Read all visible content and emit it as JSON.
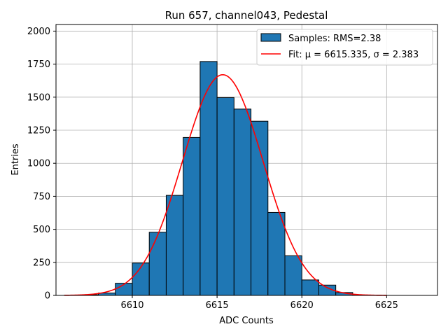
{
  "chart_data": {
    "type": "bar",
    "title": "Run 657, channel043, Pedestal",
    "xlabel": "ADC Counts",
    "ylabel": "Entries",
    "xlim": [
      6605.5,
      6628
    ],
    "ylim": [
      0,
      2050
    ],
    "x_ticks": [
      6610,
      6615,
      6620,
      6625
    ],
    "y_ticks": [
      0,
      250,
      500,
      750,
      1000,
      1250,
      1500,
      1750,
      2000
    ],
    "grid": true,
    "legend_position": "top-right",
    "bin_width": 1,
    "series": [
      {
        "name": "Samples: RMS=2.38",
        "kind": "histogram",
        "color": "#1f77b4",
        "edgecolor": "#000000",
        "bin_left_edges": [
          6606,
          6607,
          6608,
          6609,
          6610,
          6611,
          6612,
          6613,
          6614,
          6615,
          6616,
          6617,
          6618,
          6619,
          6620,
          6621,
          6622,
          6623
        ],
        "values": [
          2,
          5,
          18,
          92,
          245,
          478,
          757,
          1195,
          1770,
          1497,
          1410,
          1318,
          628,
          300,
          117,
          78,
          22,
          2
        ]
      },
      {
        "name": "Fit: μ = 6615.335, σ = 2.383",
        "kind": "gaussian",
        "color": "#ff0000",
        "amplitude": 1670,
        "mu": 6615.335,
        "sigma": 2.383,
        "x_range": [
          6606,
          6625
        ]
      }
    ]
  }
}
